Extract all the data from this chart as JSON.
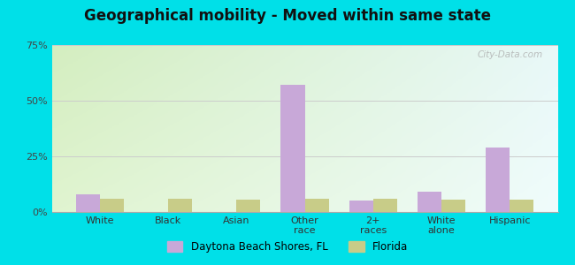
{
  "title": "Geographical mobility - Moved within same state",
  "categories": [
    "White",
    "Black",
    "Asian",
    "Other\nrace",
    "2+\nraces",
    "White\nalone",
    "Hispanic"
  ],
  "daytona_values": [
    8.0,
    0.0,
    0.0,
    57.0,
    5.0,
    9.0,
    29.0
  ],
  "florida_values": [
    6.0,
    6.0,
    5.5,
    6.0,
    6.0,
    5.5,
    5.5
  ],
  "daytona_color": "#c8a8d8",
  "florida_color": "#c8cc88",
  "ylim": [
    0,
    75
  ],
  "yticks": [
    0,
    25,
    50,
    75
  ],
  "ytick_labels": [
    "0%",
    "25%",
    "50%",
    "75%"
  ],
  "bar_width": 0.35,
  "outer_background": "#00e0e8",
  "legend_label_daytona": "Daytona Beach Shores, FL",
  "legend_label_florida": "Florida",
  "watermark": "City-Data.com",
  "grid_color": "#cccccc",
  "bg_color_topleft": "#d4eec0",
  "bg_color_topright": "#e8f8f8",
  "bg_color_bottomleft": "#e0f4d0",
  "bg_color_bottomright": "#f0fcfc"
}
